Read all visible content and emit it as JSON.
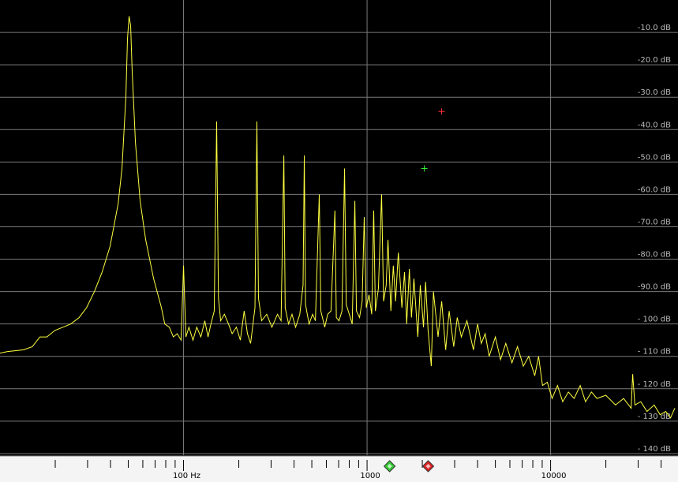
{
  "chart_data": {
    "type": "line",
    "xscale": "log",
    "grid": true,
    "color": "#ffff40",
    "xlim": [
      10,
      48000
    ],
    "ylim": [
      -140.5,
      0
    ],
    "xticks": [
      {
        "value": 100,
        "label": "100 Hz"
      },
      1000,
      10000
    ],
    "xminor_ticks": [
      20,
      30,
      40,
      50,
      60,
      70,
      80,
      90,
      200,
      300,
      400,
      500,
      600,
      700,
      800,
      900,
      2000,
      3000,
      4000,
      5000,
      6000,
      7000,
      8000,
      9000,
      20000,
      30000,
      40000
    ],
    "yticks": [
      {
        "value": -10,
        "label": "-10.0 dB"
      },
      {
        "value": -20,
        "label": "-20.0 dB"
      },
      {
        "value": -30,
        "label": "-30.0 dB"
      },
      {
        "value": -40,
        "label": "-40.0 dB"
      },
      {
        "value": -50,
        "label": "-50.0 dB"
      },
      {
        "value": -60,
        "label": "-60.0 dB"
      },
      {
        "value": -70,
        "label": "-70.0 dB"
      },
      {
        "value": -80,
        "label": "-80.0 dB"
      },
      {
        "value": -90,
        "label": "-90.0 dB"
      },
      {
        "value": -100,
        "label": "- 100 dB"
      },
      {
        "value": -110,
        "label": "- 110 dB"
      },
      {
        "value": -120,
        "label": "- 120 dB"
      },
      {
        "value": -130,
        "label": "- 130 dB"
      },
      {
        "value": -140,
        "label": "- 140 dB"
      }
    ],
    "x": [
      10,
      11,
      13.4,
      15,
      16.5,
      18,
      19.9,
      22,
      24.3,
      27,
      29.6,
      32.7,
      36,
      39.8,
      44,
      46.2,
      48.5,
      49.5,
      50.5,
      51.5,
      52.5,
      54.7,
      58,
      62.2,
      68.7,
      75.8,
      79,
      83.7,
      88,
      92.4,
      97,
      100,
      103,
      107,
      112.6,
      118,
      124.3,
      130.6,
      136,
      141,
      147,
      151.5,
      155,
      159.3,
      167,
      175.8,
      184,
      194,
      204,
      214,
      223,
      232,
      245,
      251,
      256,
      266.5,
      284,
      303,
      325,
      340,
      352,
      358,
      373.5,
      390,
      408,
      430,
      448,
      455,
      462,
      483,
      505,
      523,
      549,
      560,
      588,
      610,
      636,
      668,
      680,
      703,
      730,
      754,
      770,
      800,
      830,
      858,
      875,
      910,
      940,
      965,
      990,
      1025,
      1060,
      1087,
      1110,
      1153,
      1200,
      1230,
      1271,
      1300,
      1348,
      1390,
      1430,
      1480,
      1548,
      1600,
      1644,
      1700,
      1745,
      1800,
      1890,
      1950,
      2030,
      2084,
      2150,
      2238,
      2300,
      2437,
      2550,
      2681,
      2800,
      2966,
      3100,
      3264,
      3500,
      3798,
      4000,
      4192,
      4400,
      4626,
      5000,
      5336,
      5700,
      6157,
      6600,
      7103,
      7600,
      8194,
      8600,
      9034,
      9600,
      10190,
      10900,
      11640,
      12500,
      13430,
      14500,
      15500,
      16700,
      17890,
      20000,
      22580,
      25000,
      27470,
      28000,
      28800,
      31000,
      33500,
      36680,
      39500,
      42400,
      45000,
      47500
    ],
    "values": [
      -109,
      -108.5,
      -108,
      -107,
      -104,
      -104,
      -102,
      -101,
      -100,
      -98,
      -95,
      -90,
      -84,
      -76,
      -63,
      -52,
      -30,
      -12,
      -5,
      -8,
      -22,
      -44,
      -62,
      -74,
      -86,
      -95,
      -100,
      -101,
      -104,
      -103,
      -105,
      -82,
      -104,
      -101,
      -105,
      -101,
      -104,
      -99,
      -104,
      -100,
      -96,
      -37.5,
      -92,
      -99,
      -97,
      -100,
      -103,
      -101,
      -105,
      -96,
      -103,
      -106,
      -95,
      -37.5,
      -92,
      -99,
      -97,
      -101,
      -97,
      -99,
      -48,
      -95,
      -100,
      -97,
      -101,
      -97,
      -88,
      -48,
      -94,
      -100,
      -97,
      -99,
      -60,
      -96,
      -101,
      -97,
      -96,
      -65,
      -98,
      -99,
      -96,
      -52,
      -94,
      -97,
      -100,
      -62,
      -96,
      -98,
      -93,
      -67,
      -95,
      -91,
      -97,
      -65,
      -96,
      -89,
      -60,
      -93,
      -88,
      -74,
      -96,
      -82,
      -93,
      -78,
      -95,
      -84,
      -100,
      -83,
      -98,
      -86,
      -104,
      -88,
      -101,
      -87,
      -102,
      -113,
      -90,
      -104,
      -93,
      -108,
      -96,
      -107,
      -98,
      -104,
      -99,
      -108,
      -100,
      -106,
      -103,
      -110,
      -104,
      -111,
      -106,
      -112,
      -107,
      -113,
      -110,
      -116,
      -110,
      -119,
      -118,
      -123,
      -119,
      -124,
      -121,
      -123,
      -119,
      -124,
      -121,
      -123,
      -122,
      -125,
      -123,
      -126,
      -115.5,
      -125,
      -124,
      -127,
      -125,
      -128,
      -127,
      -129,
      -126
    ],
    "crosshairs": [
      {
        "color": "#ff3030",
        "x": 2547,
        "y": -34.4
      },
      {
        "color": "#33ee33",
        "x": 2051,
        "y": -52
      }
    ],
    "cursors": [
      {
        "color": "#33cc33",
        "x": 1327
      },
      {
        "color": "#dd2222",
        "x": 2153
      }
    ]
  }
}
